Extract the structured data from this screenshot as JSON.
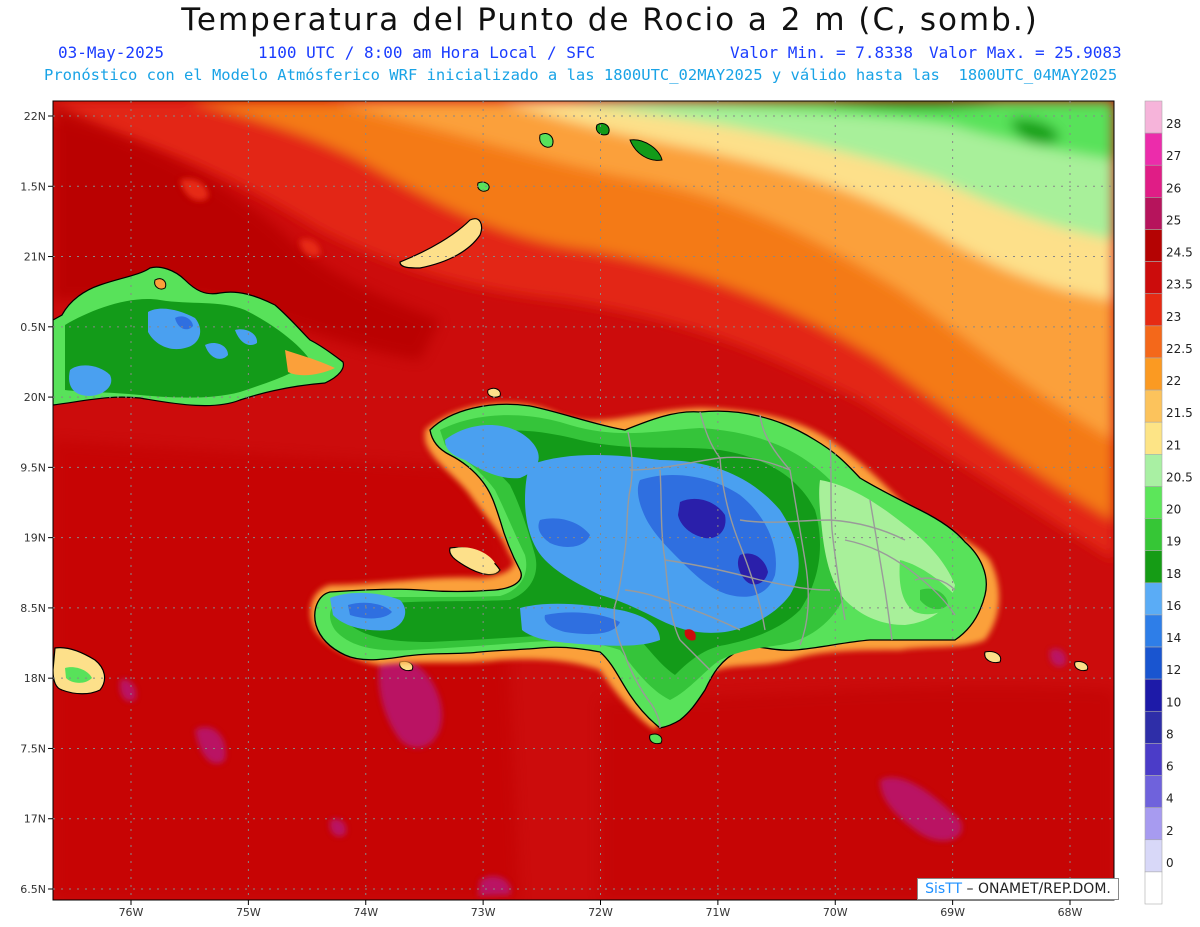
{
  "header": {
    "title": "Temperatura del Punto de Rocio a 2 m (C, somb.)",
    "date": "03-May-2025",
    "time_info": "1100 UTC / 8:00 am Hora Local / SFC",
    "value_min": "Valor Min. = 7.8338",
    "value_max": "Valor Max. = 25.9083",
    "forecast_info": "Pronóstico con el Modelo Atmósferico WRF inicializado a las 1800UTC_02MAY2025 y válido hasta las  1800UTC_04MAY2025"
  },
  "map": {
    "lat_labels": [
      "22N",
      "1.5N",
      "21N",
      "0.5N",
      "20N",
      "9.5N",
      "19N",
      "8.5N",
      "18N",
      "7.5N",
      "17N",
      "6.5N"
    ],
    "lon_labels": [
      "76W",
      "75W",
      "74W",
      "73W",
      "72W",
      "71W",
      "70W",
      "69W",
      "68W"
    ],
    "colors": {
      "sea_base": "#cc0c0c",
      "humid_patch": "#b8176e",
      "north_orange": "#f47a12",
      "north_amber": "#fba03a",
      "north_yellow": "#fde08a",
      "north_lightgreen": "#a8f09a",
      "north_green": "#58e25a",
      "land_green": "#35c43a",
      "land_darkgreen": "#139b19",
      "land_lightblue": "#4aa0f0",
      "land_blue": "#2f6fe0",
      "land_darkblue": "#2a1faa",
      "coastline": "#000000",
      "borders": "#9a9a9a"
    }
  },
  "legend": {
    "labels": [
      "28",
      "27",
      "26",
      "25",
      "24.5",
      "23.5",
      "23",
      "22.5",
      "22",
      "21.5",
      "21",
      "20.5",
      "20",
      "19",
      "18",
      "16",
      "14",
      "12",
      "10",
      "8",
      "6",
      "4",
      "2",
      "0"
    ],
    "colors": [
      "#f6b4da",
      "#ec2cab",
      "#e01d86",
      "#b6145c",
      "#b40303",
      "#cc0c0c",
      "#e62a13",
      "#f4681a",
      "#fb9a22",
      "#fcc35c",
      "#fde486",
      "#a9f0a3",
      "#5ce65a",
      "#36c636",
      "#159c15",
      "#5aacf6",
      "#2e7ee8",
      "#1955d0",
      "#1d1aa8",
      "#2e2ea8",
      "#4b3cc8",
      "#6f62dc",
      "#a79bf0",
      "#d8d8f8",
      "#ffffff"
    ]
  },
  "credit": {
    "brand": "SisTT",
    "text": " – ONAMET/REP.DOM."
  }
}
